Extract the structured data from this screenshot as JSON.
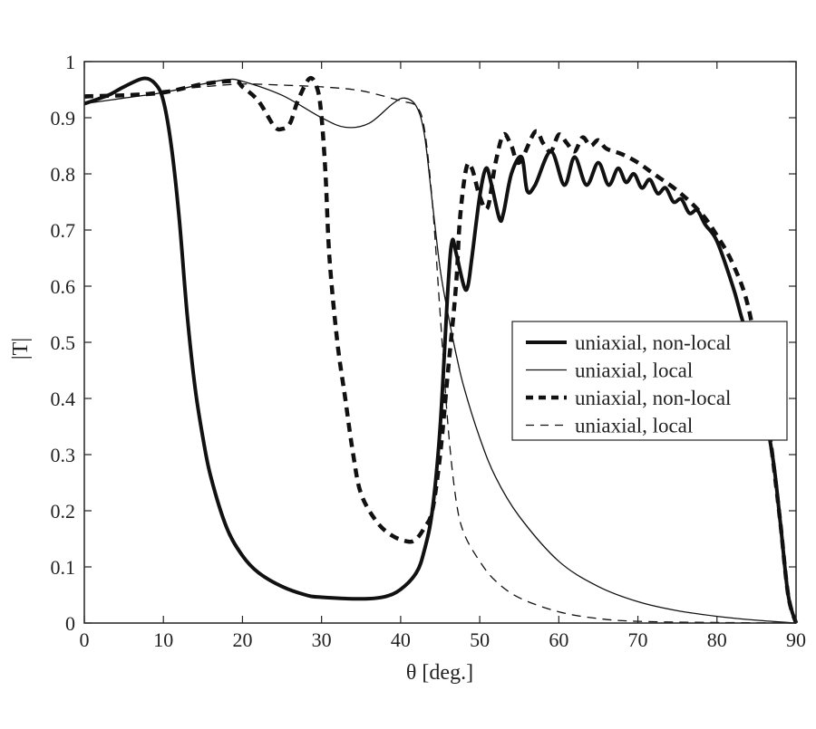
{
  "chart_data": {
    "type": "line",
    "xlabel": "θ [deg.]",
    "ylabel": "|T|",
    "xlim": [
      0,
      90
    ],
    "ylim": [
      0,
      1
    ],
    "xticks": [
      0,
      10,
      20,
      30,
      40,
      50,
      60,
      70,
      80,
      90
    ],
    "yticks": [
      0,
      0.1,
      0.2,
      0.3,
      0.4,
      0.5,
      0.6,
      0.7,
      0.8,
      0.9,
      1
    ],
    "ytick_labels": [
      "0",
      "0.1",
      "0.2",
      "0.3",
      "0.4",
      "0.5",
      "0.6",
      "0.7",
      "0.8",
      "0.9",
      "1"
    ],
    "grid": false,
    "legend_position": "center-right",
    "series": [
      {
        "name": "uniaxial, non-local",
        "style": "thick-solid",
        "color": "#111111",
        "x": [
          0,
          3,
          5,
          7.5,
          9,
          10,
          11,
          12,
          13,
          14,
          15,
          16,
          18,
          20,
          22,
          25,
          28,
          30,
          35,
          38,
          40,
          42,
          43,
          44,
          45,
          46,
          46.5,
          47,
          48,
          48.5,
          49,
          50,
          50.8,
          51.5,
          52.5,
          53,
          54,
          55.3,
          56,
          57,
          59,
          60.7,
          62,
          63.5,
          65,
          66.3,
          67.5,
          68.5,
          69.5,
          70.5,
          71.5,
          72.5,
          73.5,
          74.5,
          75.5,
          76.5,
          77.5,
          78.5,
          80,
          82,
          83,
          85,
          87,
          88,
          89,
          90
        ],
        "y": [
          0.925,
          0.94,
          0.955,
          0.97,
          0.96,
          0.93,
          0.85,
          0.72,
          0.55,
          0.42,
          0.33,
          0.26,
          0.17,
          0.12,
          0.09,
          0.065,
          0.05,
          0.046,
          0.043,
          0.047,
          0.06,
          0.09,
          0.13,
          0.2,
          0.35,
          0.6,
          0.68,
          0.66,
          0.6,
          0.6,
          0.65,
          0.76,
          0.81,
          0.78,
          0.72,
          0.73,
          0.8,
          0.83,
          0.77,
          0.78,
          0.84,
          0.78,
          0.83,
          0.78,
          0.82,
          0.78,
          0.81,
          0.785,
          0.8,
          0.775,
          0.79,
          0.765,
          0.775,
          0.75,
          0.755,
          0.73,
          0.735,
          0.71,
          0.68,
          0.6,
          0.55,
          0.45,
          0.3,
          0.18,
          0.05,
          0
        ]
      },
      {
        "name": "uniaxial, local",
        "style": "thin-solid",
        "color": "#111111",
        "x": [
          0,
          5,
          10,
          15,
          18,
          20,
          25,
          30,
          33,
          36,
          39,
          40.5,
          42,
          43,
          44,
          45,
          46,
          47,
          48,
          50,
          52,
          55,
          60,
          65,
          70,
          75,
          80,
          85,
          90
        ],
        "y": [
          0.925,
          0.935,
          0.945,
          0.96,
          0.968,
          0.965,
          0.94,
          0.9,
          0.883,
          0.89,
          0.925,
          0.935,
          0.92,
          0.87,
          0.75,
          0.63,
          0.55,
          0.48,
          0.42,
          0.33,
          0.26,
          0.19,
          0.11,
          0.065,
          0.038,
          0.022,
          0.012,
          0.005,
          0
        ]
      },
      {
        "name": "uniaxial, non-local",
        "style": "thick-dashed",
        "color": "#111111",
        "x": [
          0,
          5,
          10,
          15,
          19,
          20,
          22,
          24,
          25,
          26,
          27,
          28.5,
          29.5,
          30,
          30.5,
          31,
          32,
          33,
          34,
          35,
          37,
          39,
          41,
          42,
          43,
          44,
          45,
          46,
          47,
          47.5,
          48.3,
          49,
          50,
          51,
          52,
          53,
          54,
          55,
          57,
          58,
          59,
          60,
          61,
          62,
          63,
          64,
          65,
          66,
          68,
          70,
          72,
          75,
          78,
          80,
          82,
          84,
          86,
          87,
          88,
          89,
          90
        ],
        "y": [
          0.938,
          0.94,
          0.945,
          0.96,
          0.965,
          0.955,
          0.93,
          0.885,
          0.88,
          0.89,
          0.93,
          0.97,
          0.95,
          0.9,
          0.8,
          0.65,
          0.5,
          0.4,
          0.3,
          0.23,
          0.18,
          0.155,
          0.145,
          0.15,
          0.17,
          0.2,
          0.3,
          0.45,
          0.6,
          0.72,
          0.81,
          0.81,
          0.76,
          0.74,
          0.82,
          0.87,
          0.85,
          0.82,
          0.875,
          0.855,
          0.84,
          0.87,
          0.855,
          0.84,
          0.865,
          0.85,
          0.86,
          0.845,
          0.835,
          0.82,
          0.8,
          0.77,
          0.73,
          0.69,
          0.64,
          0.56,
          0.4,
          0.3,
          0.18,
          0.05,
          0
        ]
      },
      {
        "name": "uniaxial, local",
        "style": "thin-dashed",
        "color": "#111111",
        "x": [
          0,
          5,
          10,
          15,
          20,
          25,
          30,
          35,
          40,
          42,
          43,
          44,
          45,
          46,
          47,
          48,
          50,
          52,
          55,
          60,
          65,
          70,
          80,
          90
        ],
        "y": [
          0.935,
          0.94,
          0.948,
          0.955,
          0.96,
          0.958,
          0.955,
          0.948,
          0.93,
          0.92,
          0.88,
          0.75,
          0.55,
          0.35,
          0.22,
          0.16,
          0.11,
          0.075,
          0.045,
          0.02,
          0.008,
          0.003,
          0.001,
          0
        ]
      }
    ]
  }
}
